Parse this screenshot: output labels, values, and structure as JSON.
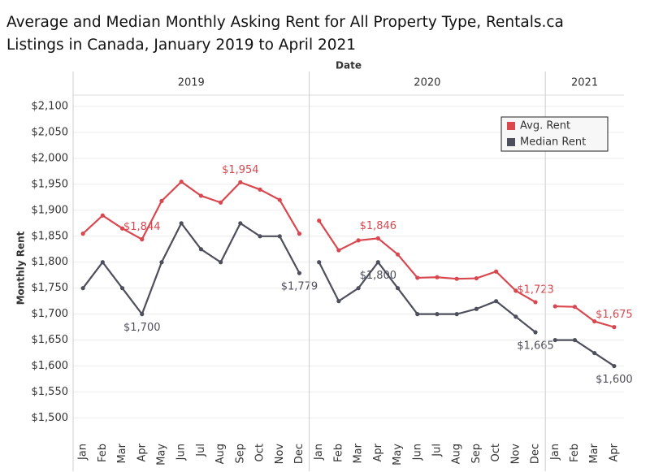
{
  "chart_data": {
    "type": "line",
    "title": [
      "Average and Median Monthly Asking Rent for All Property Type, Rentals.ca",
      "Listings in Canada, January 2019 to April 2021"
    ],
    "x_label": "Date",
    "y_label": "Monthly Rent",
    "ylim": [
      1460,
      2122
    ],
    "yticks": [
      {
        "value": 1500,
        "label": "$1,500"
      },
      {
        "value": 1550,
        "label": "$1,550"
      },
      {
        "value": 1600,
        "label": "$1,600"
      },
      {
        "value": 1650,
        "label": "$1,650"
      },
      {
        "value": 1700,
        "label": "$1,700"
      },
      {
        "value": 1750,
        "label": "$1,750"
      },
      {
        "value": 1800,
        "label": "$1,800"
      },
      {
        "value": 1850,
        "label": "$1,850"
      },
      {
        "value": 1900,
        "label": "$1,900"
      },
      {
        "value": 1950,
        "label": "$1,950"
      },
      {
        "value": 2000,
        "label": "$2,000"
      },
      {
        "value": 2050,
        "label": "$2,050"
      },
      {
        "value": 2100,
        "label": "$2,100"
      }
    ],
    "grid": true,
    "legend": "upper right",
    "series": [
      {
        "name": "Avg. Rent",
        "color": "#d9474f"
      },
      {
        "name": "Median Rent",
        "color": "#4e4f5c"
      }
    ],
    "panels": [
      {
        "label": "2019",
        "categories": [
          "Jan",
          "Feb",
          "Mar",
          "Apr",
          "May",
          "Jun",
          "Jul",
          "Aug",
          "Sep",
          "Oct",
          "Nov",
          "Dec"
        ],
        "series": [
          {
            "values": [
              1855,
              1890,
              1865,
              1844,
              1918,
              1955,
              1928,
              1915,
              1954,
              1940,
              1920,
              1855
            ],
            "value_labels": [
              null,
              null,
              null,
              "$1,844",
              null,
              null,
              null,
              null,
              "$1,954",
              null,
              null,
              null
            ]
          },
          {
            "values": [
              1750,
              1800,
              1750,
              1700,
              1800,
              1875,
              1825,
              1800,
              1875,
              1850,
              1850,
              1779
            ],
            "value_labels": [
              null,
              null,
              null,
              "$1,700",
              null,
              null,
              null,
              null,
              null,
              null,
              null,
              "$1,779"
            ]
          }
        ]
      },
      {
        "label": "2020",
        "categories": [
          "Jan",
          "Feb",
          "Mar",
          "Apr",
          "May",
          "Jun",
          "Jul",
          "Aug",
          "Sep",
          "Oct",
          "Nov",
          "Dec"
        ],
        "series": [
          {
            "values": [
              1880,
              1823,
              1842,
              1846,
              1815,
              1770,
              1771,
              1768,
              1769,
              1782,
              1745,
              1723
            ],
            "value_labels": [
              null,
              null,
              null,
              "$1,846",
              null,
              null,
              null,
              null,
              null,
              null,
              null,
              "$1,723"
            ]
          },
          {
            "values": [
              1800,
              1725,
              1750,
              1800,
              1750,
              1700,
              1700,
              1700,
              1710,
              1725,
              1695,
              1665
            ],
            "value_labels": [
              null,
              null,
              null,
              "$1,800",
              null,
              null,
              null,
              null,
              null,
              null,
              null,
              "$1,665"
            ]
          }
        ]
      },
      {
        "label": "2021",
        "categories": [
          "Jan",
          "Feb",
          "Mar",
          "Apr"
        ],
        "series": [
          {
            "values": [
              1715,
              1714,
              1686,
              1675
            ],
            "value_labels": [
              null,
              null,
              null,
              "$1,675"
            ]
          },
          {
            "values": [
              1650,
              1650,
              1625,
              1600
            ],
            "value_labels": [
              null,
              null,
              null,
              "$1,600"
            ]
          }
        ]
      }
    ]
  }
}
